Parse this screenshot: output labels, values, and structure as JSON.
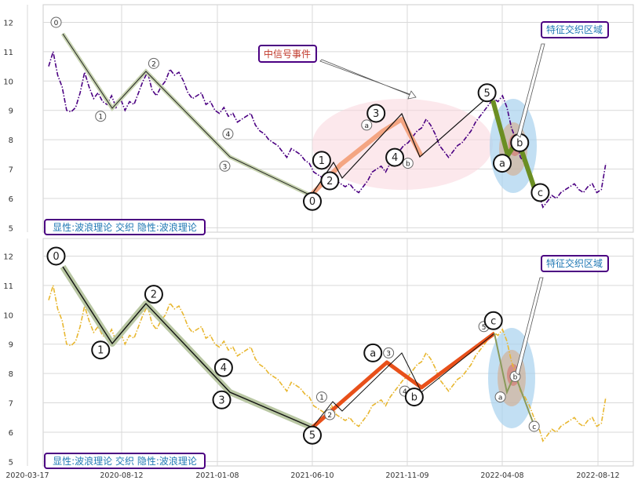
{
  "chart_data": [
    {
      "type": "line",
      "panel": "top",
      "ylim": [
        4.85,
        12.6
      ],
      "yticks": [
        5,
        6,
        7,
        8,
        9,
        10,
        11,
        12
      ],
      "xticks": [
        "2020-03-17",
        "2020-08-12",
        "2021-01-08",
        "2021-06-10",
        "2021-11-09",
        "2022-04-08",
        "2022-08-12"
      ],
      "grid": true,
      "price_series": {
        "color": "#4b0082",
        "style": "dash-dot",
        "values": [
          10.5,
          11.0,
          10.2,
          9.8,
          9.0,
          8.95,
          9.1,
          9.6,
          10.3,
          9.8,
          9.4,
          9.6,
          9.3,
          9.2,
          9.5,
          9.1,
          9.4,
          9.0,
          9.3,
          9.2,
          9.6,
          10.0,
          10.3,
          9.7,
          9.5,
          9.8,
          10.0,
          10.4,
          10.2,
          10.3,
          10.0,
          9.6,
          9.4,
          9.5,
          9.6,
          9.2,
          9.3,
          9.0,
          8.9,
          9.1,
          8.8,
          8.9,
          8.6,
          8.7,
          8.8,
          8.9,
          8.5,
          8.3,
          8.2,
          8.0,
          7.9,
          7.8,
          7.6,
          7.4,
          7.7,
          7.6,
          7.5,
          7.3,
          7.2,
          6.9,
          6.8,
          6.7,
          6.6,
          6.9,
          6.6,
          6.5,
          6.4,
          6.5,
          6.3,
          6.2,
          6.4,
          6.6,
          6.9,
          7.0,
          7.1,
          6.9,
          7.2,
          7.4,
          7.6,
          7.8,
          7.9,
          8.1,
          8.3,
          8.4,
          8.7,
          8.5,
          8.2,
          7.8,
          7.6,
          7.4,
          7.6,
          7.8,
          7.9,
          8.1,
          8.3,
          8.6,
          8.8,
          9.0,
          9.2,
          9.4,
          9.3,
          9.5,
          9.1,
          8.4,
          8.0,
          7.4,
          7.2,
          6.9,
          6.5,
          6.2,
          5.7,
          5.9,
          6.1,
          6.0,
          6.2,
          6.3,
          6.4,
          6.5,
          6.3,
          6.2,
          6.4,
          6.5,
          6.2,
          6.3,
          7.2
        ]
      },
      "wave_labels": {
        "major": [
          {
            "label": "0",
            "date": "2021-06-10",
            "value": 5.9
          },
          {
            "label": "1",
            "date": "2021-06-25",
            "value": 7.3
          },
          {
            "label": "2",
            "date": "2021-07-08",
            "value": 6.6
          },
          {
            "label": "3",
            "date": "2021-09-20",
            "value": 8.9
          },
          {
            "label": "4",
            "date": "2021-10-20",
            "value": 7.4
          },
          {
            "label": "5",
            "date": "2022-03-15",
            "value": 9.6
          },
          {
            "label": "a",
            "date": "2022-04-08",
            "value": 7.2
          },
          {
            "label": "b",
            "date": "2022-05-01",
            "value": 7.9
          },
          {
            "label": "c",
            "date": "2022-05-28",
            "value": 6.2
          }
        ],
        "minor": [
          {
            "label": "0",
            "date": "2020-05-01",
            "value": 12.0
          },
          {
            "label": "1",
            "date": "2020-07-10",
            "value": 8.8
          },
          {
            "label": "2",
            "date": "2020-10-01",
            "value": 10.6
          },
          {
            "label": "3",
            "date": "2021-01-20",
            "value": 7.1
          },
          {
            "label": "4",
            "date": "2021-01-25",
            "value": 8.2
          },
          {
            "label": "a",
            "date": "2021-09-05",
            "value": 8.5
          },
          {
            "label": "b",
            "date": "2021-11-10",
            "value": 7.2
          }
        ]
      },
      "annotations": {
        "box_left": "中信号事件",
        "box_right": "特征交织区域",
        "footer": "显性:波浪理论 交织 隐性:波浪理论"
      }
    },
    {
      "type": "line",
      "panel": "bottom",
      "ylim": [
        4.85,
        12.6
      ],
      "yticks": [
        5,
        6,
        7,
        8,
        9,
        10,
        11,
        12
      ],
      "xticks": [
        "2020-03-17",
        "2020-08-12",
        "2021-01-08",
        "2021-06-10",
        "2021-11-09",
        "2022-04-08",
        "2022-08-12"
      ],
      "grid": true,
      "price_series": {
        "color": "#e8b730",
        "style": "dash-dot"
      },
      "wave_labels": {
        "major": [
          {
            "label": "0",
            "date": "2020-05-01",
            "value": 12.0
          },
          {
            "label": "1",
            "date": "2020-07-10",
            "value": 8.8
          },
          {
            "label": "2",
            "date": "2020-10-01",
            "value": 10.7
          },
          {
            "label": "3",
            "date": "2021-01-15",
            "value": 7.1
          },
          {
            "label": "4",
            "date": "2021-01-18",
            "value": 8.2
          },
          {
            "label": "5",
            "date": "2021-06-10",
            "value": 5.9
          },
          {
            "label": "a",
            "date": "2021-09-15",
            "value": 8.7
          },
          {
            "label": "b",
            "date": "2021-11-20",
            "value": 7.2
          },
          {
            "label": "c",
            "date": "2022-03-25",
            "value": 9.8
          }
        ],
        "minor": [
          {
            "label": "1",
            "date": "2021-06-25",
            "value": 7.2
          },
          {
            "label": "2",
            "date": "2021-07-08",
            "value": 6.6
          },
          {
            "label": "3",
            "date": "2021-10-10",
            "value": 8.7
          },
          {
            "label": "4",
            "date": "2021-11-05",
            "value": 7.4
          },
          {
            "label": "5",
            "date": "2022-03-10",
            "value": 9.6
          },
          {
            "label": "a",
            "date": "2022-04-05",
            "value": 7.2
          },
          {
            "label": "b",
            "date": "2022-04-25",
            "value": 7.9
          },
          {
            "label": "c",
            "date": "2022-05-20",
            "value": 6.2
          }
        ]
      },
      "annotations": {
        "box_right": "特征交织区域",
        "footer": "显性:波浪理论 交织 隐性:波浪理论"
      }
    }
  ],
  "colors": {
    "grid": "#d9d9d9",
    "axis_text": "#333333",
    "box_border": "#4b0082",
    "box_text_red": "#c0392b",
    "box_text_blue": "#1f78b4",
    "thick_orange": "#e8501a",
    "salmon": "#f4a582",
    "olive": "#6b8e23",
    "pale_green": "#c7d3b0"
  }
}
